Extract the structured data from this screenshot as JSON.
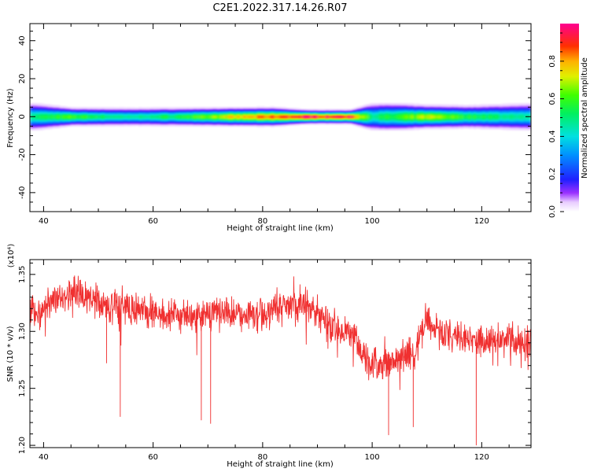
{
  "title": "C2E1.2022.317.14.26.R07",
  "colors": {
    "snr_line": "#f03030",
    "axis": "#000000",
    "background": "#ffffff"
  },
  "chart_data": [
    {
      "type": "heatmap",
      "xlabel": "Height of straight line (km)",
      "ylabel": "Frequency (Hz)",
      "xlim": [
        37.5,
        129
      ],
      "ylim": [
        -50,
        49
      ],
      "xticks": [
        "40",
        "60",
        "80",
        "100",
        "120"
      ],
      "yticks": [
        "40",
        "20",
        "0",
        "-20",
        "-40"
      ],
      "band_center_hz": 0,
      "band_profile": {
        "height_km": [
          38,
          45,
          55,
          65,
          75,
          82,
          88,
          96,
          100,
          104,
          110,
          118,
          129
        ],
        "peak_normalized_amplitude": [
          0.5,
          0.6,
          0.45,
          0.55,
          0.75,
          0.85,
          0.95,
          0.92,
          0.5,
          0.55,
          0.7,
          0.55,
          0.45
        ],
        "half_width_hz": [
          3,
          2,
          2,
          2,
          2,
          2,
          1.5,
          1.5,
          3,
          3,
          2.5,
          2.5,
          3
        ]
      },
      "colorbar": {
        "label": "Normalized spectral amplitude",
        "ticks": [
          "0.0",
          "0.2",
          "0.4",
          "0.6",
          "0.8"
        ],
        "range": [
          0,
          1
        ],
        "colormap": "rainbow-white"
      }
    },
    {
      "type": "line",
      "xlabel": "Height of straight line (km)",
      "ylabel": "SNR (10 * v/v)",
      "yscale_note": "(x10⁴)",
      "xlim": [
        37.5,
        129
      ],
      "ylim": [
        1.198,
        1.363
      ],
      "xticks": [
        "40",
        "60",
        "80",
        "100",
        "120"
      ],
      "yticks": [
        "1.35",
        "1.30",
        "1.25",
        "1.20"
      ],
      "series": [
        {
          "x": [
            38,
            42,
            46,
            50,
            54,
            58,
            62,
            66,
            70,
            74,
            78,
            82,
            86,
            88,
            90,
            92,
            94,
            96,
            98,
            100,
            102,
            104,
            106,
            108,
            109,
            110,
            112,
            116,
            120,
            124,
            128
          ],
          "y": [
            1.315,
            1.328,
            1.335,
            1.326,
            1.32,
            1.318,
            1.316,
            1.312,
            1.315,
            1.316,
            1.313,
            1.318,
            1.322,
            1.326,
            1.318,
            1.305,
            1.302,
            1.3,
            1.285,
            1.272,
            1.27,
            1.275,
            1.278,
            1.282,
            1.3,
            1.31,
            1.3,
            1.295,
            1.292,
            1.292,
            1.29
          ],
          "noise_amplitude": 0.012,
          "dips": [
            {
              "x": 51.5,
              "y": 1.272
            },
            {
              "x": 54,
              "y": 1.225
            },
            {
              "x": 68.8,
              "y": 1.222
            },
            {
              "x": 70.5,
              "y": 1.219
            },
            {
              "x": 103,
              "y": 1.209
            },
            {
              "x": 107.5,
              "y": 1.216
            },
            {
              "x": 119,
              "y": 1.2
            }
          ]
        }
      ]
    }
  ]
}
